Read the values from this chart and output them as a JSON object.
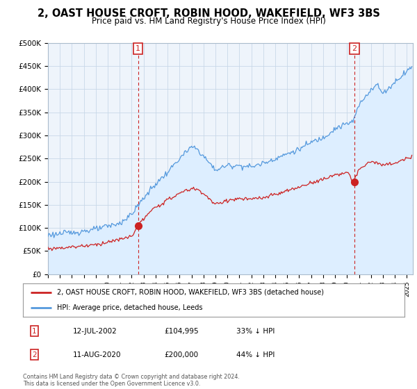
{
  "title": "2, OAST HOUSE CROFT, ROBIN HOOD, WAKEFIELD, WF3 3BS",
  "subtitle": "Price paid vs. HM Land Registry's House Price Index (HPI)",
  "title_fontsize": 10.5,
  "subtitle_fontsize": 8.5,
  "ylim": [
    0,
    500000
  ],
  "yticks": [
    0,
    50000,
    100000,
    150000,
    200000,
    250000,
    300000,
    350000,
    400000,
    450000,
    500000
  ],
  "ytick_labels": [
    "£0",
    "£50K",
    "£100K",
    "£150K",
    "£200K",
    "£250K",
    "£300K",
    "£350K",
    "£400K",
    "£450K",
    "£500K"
  ],
  "hpi_color": "#5599dd",
  "price_color": "#cc2222",
  "hpi_fill_color": "#ddeeff",
  "marker1_price": 104995,
  "marker2_price": 200000,
  "point1_year": 2002.527,
  "point2_year": 2020.608,
  "legend_entries": [
    "2, OAST HOUSE CROFT, ROBIN HOOD, WAKEFIELD, WF3 3BS (detached house)",
    "HPI: Average price, detached house, Leeds"
  ],
  "annotation1": [
    "1",
    "12-JUL-2002",
    "£104,995",
    "33% ↓ HPI"
  ],
  "annotation2": [
    "2",
    "11-AUG-2020",
    "£200,000",
    "44% ↓ HPI"
  ],
  "footer": "Contains HM Land Registry data © Crown copyright and database right 2024.\nThis data is licensed under the Open Government Licence v3.0.",
  "background_color": "#ffffff",
  "plot_bg_color": "#eef4fb",
  "grid_color": "#c8d8e8"
}
